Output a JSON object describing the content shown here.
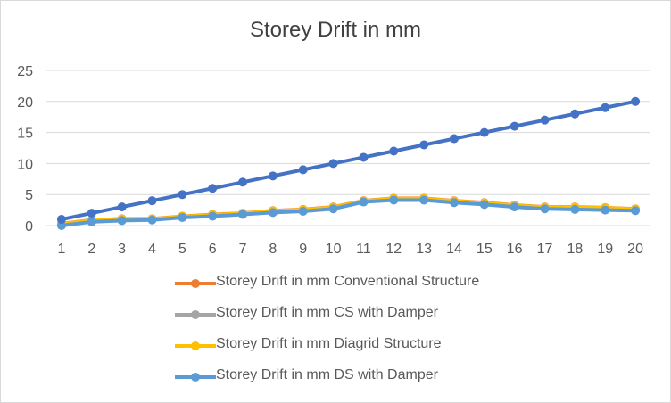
{
  "chart_data": {
    "type": "line",
    "title": "Storey Drift in mm",
    "x": [
      1,
      2,
      3,
      4,
      5,
      6,
      7,
      8,
      9,
      10,
      11,
      12,
      13,
      14,
      15,
      16,
      17,
      18,
      19,
      20
    ],
    "ylim": [
      0,
      25
    ],
    "yticks": [
      0,
      5,
      10,
      15,
      20,
      25
    ],
    "grid": true,
    "legend_position": "bottom",
    "series": [
      {
        "name": "Storey Drift in mm Conventional Structure",
        "color": "#ED7D31",
        "values": [
          0.3,
          0.9,
          1.1,
          1.1,
          1.5,
          1.8,
          2.0,
          2.4,
          2.6,
          3.0,
          4.0,
          4.4,
          4.4,
          4.0,
          3.7,
          3.3,
          3.0,
          3.0,
          2.9,
          2.7
        ]
      },
      {
        "name": "Storey Drift in mm CS with Damper",
        "color": "#A5A5A5",
        "values": [
          0.2,
          0.8,
          1.0,
          1.0,
          1.4,
          1.7,
          1.9,
          2.3,
          2.5,
          2.9,
          3.9,
          4.3,
          4.3,
          3.9,
          3.6,
          3.2,
          2.9,
          2.9,
          2.8,
          2.6
        ]
      },
      {
        "name": "Storey Drift in mm Diagrid Structure",
        "color": "#FFC000",
        "values": [
          0.25,
          0.85,
          1.05,
          1.05,
          1.45,
          1.75,
          1.95,
          2.35,
          2.55,
          2.95,
          3.95,
          4.35,
          4.35,
          3.95,
          3.65,
          3.25,
          2.95,
          2.95,
          2.85,
          2.65
        ]
      },
      {
        "name": "Storey Drift in mm DS with Damper",
        "color": "#5B9BD5",
        "values": [
          0.0,
          0.6,
          0.8,
          0.9,
          1.3,
          1.5,
          1.8,
          2.1,
          2.3,
          2.7,
          3.8,
          4.1,
          4.1,
          3.7,
          3.4,
          3.0,
          2.7,
          2.6,
          2.5,
          2.4
        ]
      },
      {
        "color": "#4472C4",
        "values": [
          1,
          2,
          3,
          4,
          5,
          6,
          7,
          8,
          9,
          10,
          11,
          12,
          13,
          14,
          15,
          16,
          17,
          18,
          19,
          20
        ]
      }
    ]
  }
}
